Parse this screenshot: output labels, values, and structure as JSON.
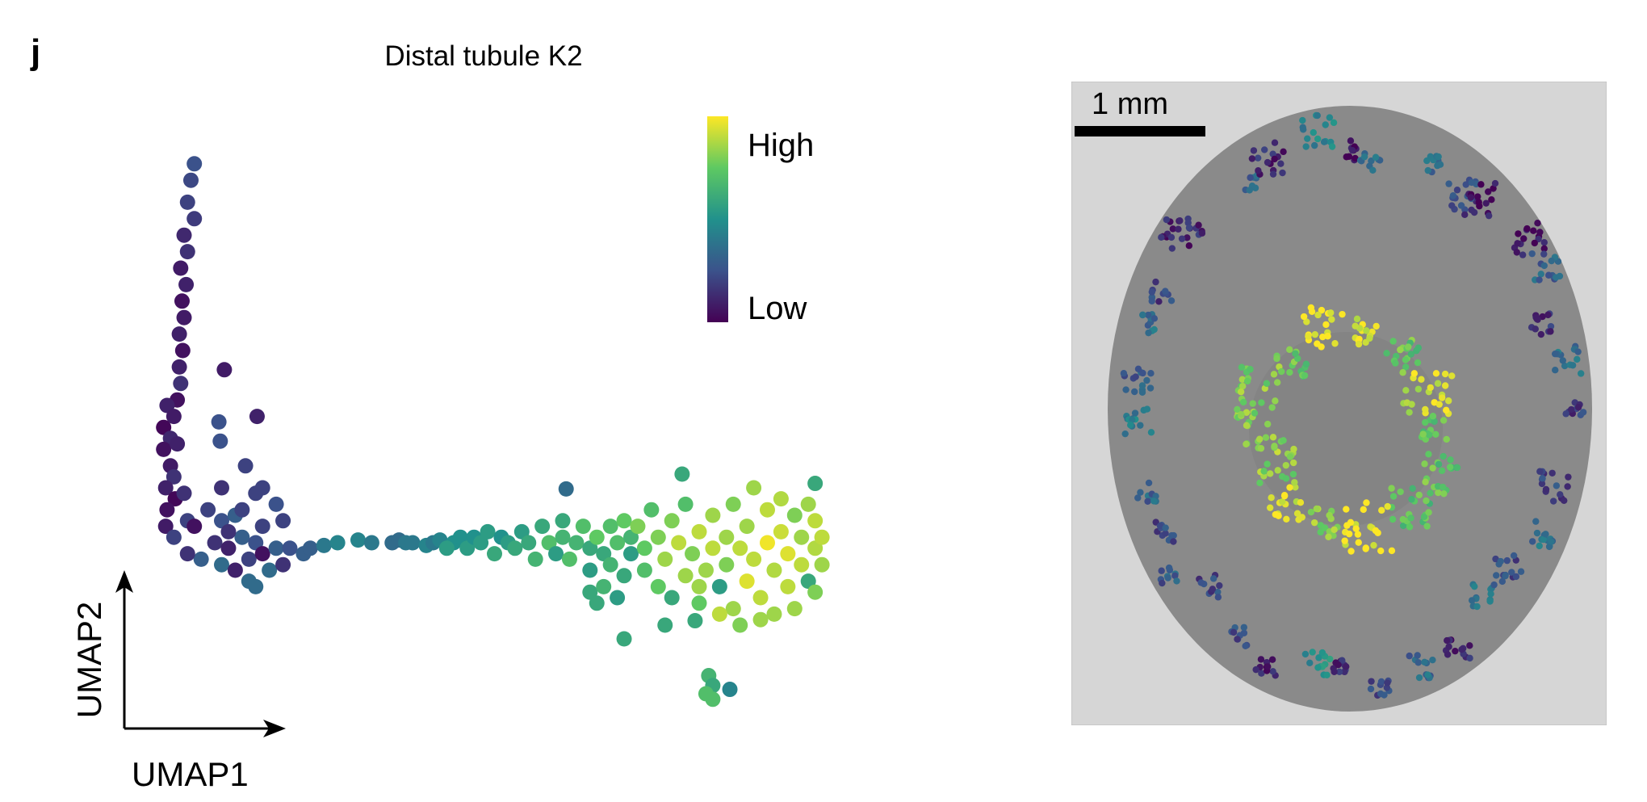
{
  "panel_letter": "j",
  "right_panel": {
    "scale_bar_label": "1 mm"
  },
  "chart_data": {
    "type": "scatter",
    "title": "Distal tubule K2",
    "xlabel": "UMAP1",
    "ylabel": "UMAP2",
    "xlim": [
      0,
      100
    ],
    "ylim": [
      0,
      100
    ],
    "grid": false,
    "colorbar": {
      "high_label": "High",
      "low_label": "Low",
      "colormap": "viridis",
      "range": [
        0,
        1
      ]
    },
    "point_fields": [
      "umap1",
      "umap2",
      "expression"
    ],
    "points": [
      [
        6,
        99,
        0.25
      ],
      [
        5.5,
        96,
        0.22
      ],
      [
        5,
        92,
        0.2
      ],
      [
        6,
        89,
        0.18
      ],
      [
        4.5,
        86,
        0.12
      ],
      [
        5,
        83,
        0.15
      ],
      [
        4,
        80,
        0.08
      ],
      [
        4.8,
        77,
        0.1
      ],
      [
        4.2,
        74,
        0.05
      ],
      [
        4.5,
        71,
        0.08
      ],
      [
        3.8,
        68,
        0.1
      ],
      [
        4.3,
        65,
        0.05
      ],
      [
        3.8,
        62,
        0.1
      ],
      [
        4,
        59,
        0.15
      ],
      [
        3.5,
        56,
        0.05
      ],
      [
        2,
        55,
        0.1
      ],
      [
        3,
        53,
        0.08
      ],
      [
        1.5,
        51,
        0.02
      ],
      [
        2.5,
        49,
        0.12
      ],
      [
        1.5,
        47,
        0.05
      ],
      [
        3.5,
        48,
        0.1
      ],
      [
        2.5,
        44,
        0.08
      ],
      [
        3,
        42,
        0.15
      ],
      [
        1.8,
        40,
        0.1
      ],
      [
        3.2,
        38,
        0.02
      ],
      [
        4.5,
        39,
        0.15
      ],
      [
        2,
        36,
        0.05
      ],
      [
        1.8,
        33,
        0.08
      ],
      [
        3,
        31,
        0.2
      ],
      [
        5,
        34,
        0.2
      ],
      [
        10.4,
        61.5,
        0.08
      ],
      [
        15.2,
        53,
        0.1
      ],
      [
        9.6,
        52,
        0.25
      ],
      [
        9.8,
        48.5,
        0.25
      ],
      [
        13.5,
        44,
        0.2
      ],
      [
        15,
        39,
        0.2
      ],
      [
        10,
        40,
        0.15
      ],
      [
        16,
        40,
        0.2
      ],
      [
        19,
        34,
        0.2
      ],
      [
        18,
        37,
        0.25
      ],
      [
        8,
        36,
        0.2
      ],
      [
        10,
        34,
        0.25
      ],
      [
        12,
        35,
        0.3
      ],
      [
        9,
        30,
        0.15
      ],
      [
        11,
        29,
        0.1
      ],
      [
        13,
        31,
        0.3
      ],
      [
        15,
        30,
        0.25
      ],
      [
        7,
        27,
        0.3
      ],
      [
        10,
        26,
        0.35
      ],
      [
        12,
        25,
        0.1
      ],
      [
        14,
        27,
        0.2
      ],
      [
        16,
        28,
        0.05
      ],
      [
        18,
        29,
        0.3
      ],
      [
        17,
        25,
        0.35
      ],
      [
        19,
        26,
        0.15
      ],
      [
        20,
        29,
        0.25
      ],
      [
        22,
        28,
        0.3
      ],
      [
        23,
        29,
        0.3
      ],
      [
        14,
        23,
        0.35
      ],
      [
        15,
        22,
        0.35
      ],
      [
        6,
        33,
        0.05
      ],
      [
        5,
        28,
        0.15
      ],
      [
        11,
        32,
        0.15
      ],
      [
        13,
        36,
        0.2
      ],
      [
        16,
        33,
        0.2
      ],
      [
        25,
        29.5,
        0.4
      ],
      [
        27,
        30,
        0.45
      ],
      [
        30,
        30.5,
        0.45
      ],
      [
        32,
        30,
        0.4
      ],
      [
        35,
        30,
        0.35
      ],
      [
        36,
        30.5,
        0.35
      ],
      [
        37,
        30,
        0.4
      ],
      [
        38,
        30,
        0.4
      ],
      [
        40,
        29.5,
        0.45
      ],
      [
        41,
        30,
        0.4
      ],
      [
        42,
        30.5,
        0.45
      ],
      [
        44,
        30,
        0.5
      ],
      [
        43,
        29,
        0.55
      ],
      [
        45,
        31,
        0.5
      ],
      [
        46,
        29,
        0.55
      ],
      [
        47,
        31,
        0.5
      ],
      [
        48,
        30,
        0.55
      ],
      [
        49,
        32,
        0.55
      ],
      [
        50,
        28,
        0.6
      ],
      [
        51,
        31,
        0.5
      ],
      [
        52,
        30,
        0.55
      ],
      [
        53,
        29,
        0.6
      ],
      [
        54,
        32,
        0.55
      ],
      [
        55,
        30,
        0.6
      ],
      [
        56,
        27,
        0.65
      ],
      [
        57,
        33,
        0.6
      ],
      [
        58,
        30,
        0.7
      ],
      [
        59,
        28,
        0.55
      ],
      [
        60,
        31,
        0.65
      ],
      [
        60,
        34,
        0.6
      ],
      [
        61,
        27,
        0.7
      ],
      [
        62,
        30,
        0.65
      ],
      [
        63,
        33,
        0.7
      ],
      [
        64,
        25,
        0.55
      ],
      [
        64,
        29,
        0.6
      ],
      [
        65,
        31,
        0.75
      ],
      [
        66,
        28,
        0.6
      ],
      [
        67,
        33,
        0.7
      ],
      [
        67,
        26,
        0.65
      ],
      [
        68,
        30,
        0.7
      ],
      [
        69,
        24,
        0.6
      ],
      [
        69,
        34,
        0.75
      ],
      [
        70,
        28,
        0.55
      ],
      [
        70,
        31,
        0.65
      ],
      [
        64,
        21,
        0.6
      ],
      [
        66,
        22,
        0.65
      ],
      [
        68,
        20,
        0.55
      ],
      [
        65,
        19,
        0.6
      ],
      [
        71,
        33,
        0.8
      ],
      [
        72,
        29,
        0.75
      ],
      [
        72,
        25,
        0.7
      ],
      [
        73,
        36,
        0.7
      ],
      [
        74,
        31,
        0.8
      ],
      [
        74,
        22,
        0.75
      ],
      [
        75,
        27,
        0.85
      ],
      [
        76,
        34,
        0.8
      ],
      [
        76,
        20,
        0.6
      ],
      [
        77,
        30,
        0.9
      ],
      [
        78,
        24,
        0.85
      ],
      [
        78,
        37,
        0.7
      ],
      [
        79,
        28,
        0.8
      ],
      [
        80,
        32,
        0.9
      ],
      [
        80,
        19,
        0.75
      ],
      [
        81,
        25,
        0.85
      ],
      [
        82,
        35,
        0.85
      ],
      [
        82,
        29,
        0.9
      ],
      [
        83,
        22,
        0.55
      ],
      [
        84,
        31,
        0.85
      ],
      [
        84,
        26,
        0.8
      ],
      [
        85,
        37,
        0.8
      ],
      [
        85,
        18,
        0.85
      ],
      [
        86,
        29,
        0.9
      ],
      [
        87,
        23,
        0.95
      ],
      [
        87,
        33,
        0.85
      ],
      [
        88,
        40,
        0.85
      ],
      [
        88,
        27,
        0.9
      ],
      [
        89,
        20,
        0.9
      ],
      [
        90,
        30,
        0.98
      ],
      [
        90,
        36,
        0.9
      ],
      [
        91,
        25,
        0.88
      ],
      [
        91,
        17,
        0.85
      ],
      [
        92,
        38,
        0.88
      ],
      [
        92,
        32,
        0.92
      ],
      [
        93,
        22,
        0.9
      ],
      [
        93,
        28,
        0.95
      ],
      [
        94,
        35,
        0.8
      ],
      [
        94,
        18,
        0.85
      ],
      [
        95,
        26,
        0.9
      ],
      [
        95,
        31,
        0.85
      ],
      [
        96,
        23,
        0.6
      ],
      [
        96,
        37,
        0.85
      ],
      [
        97,
        29,
        0.88
      ],
      [
        97,
        34,
        0.9
      ],
      [
        98,
        31,
        0.9
      ],
      [
        97,
        21,
        0.8
      ],
      [
        98,
        26,
        0.85
      ],
      [
        89,
        16,
        0.85
      ],
      [
        86,
        15,
        0.8
      ],
      [
        83,
        17,
        0.9
      ],
      [
        80,
        22,
        0.85
      ],
      [
        60.5,
        39.8,
        0.35
      ],
      [
        77.5,
        42.5,
        0.6
      ],
      [
        97,
        40.8,
        0.6
      ],
      [
        69,
        12.5,
        0.6
      ],
      [
        79.4,
        15.8,
        0.6
      ],
      [
        75,
        15,
        0.6
      ],
      [
        81.4,
        5.8,
        0.65
      ],
      [
        82,
        4,
        0.6
      ],
      [
        81,
        2.5,
        0.7
      ],
      [
        84.5,
        3.3,
        0.45
      ],
      [
        82,
        1.5,
        0.7
      ]
    ]
  }
}
